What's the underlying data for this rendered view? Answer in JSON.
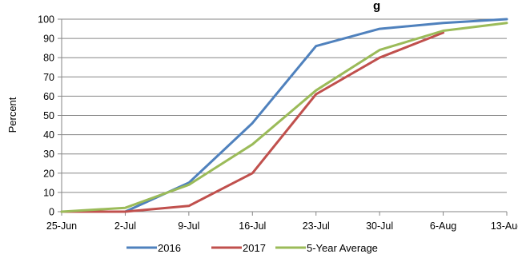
{
  "chart_data": {
    "type": "line",
    "title": "g",
    "xlabel": "",
    "ylabel": "Percent",
    "categories": [
      "25-Jun",
      "2-Jul",
      "9-Jul",
      "16-Jul",
      "23-Jul",
      "30-Jul",
      "6-Aug",
      "13-Aug"
    ],
    "ylim": [
      0,
      100
    ],
    "yticks": [
      0,
      10,
      20,
      30,
      40,
      50,
      60,
      70,
      80,
      90,
      100
    ],
    "grid": true,
    "legend_position": "bottom",
    "series": [
      {
        "name": "2016",
        "color": "#4F81BD",
        "values": [
          0,
          0,
          15,
          46,
          86,
          95,
          98,
          100
        ]
      },
      {
        "name": "2017",
        "color": "#C0504D",
        "values": [
          0,
          0,
          3,
          20,
          61,
          80,
          93,
          null
        ]
      },
      {
        "name": "5-Year Average",
        "color": "#9BBB59",
        "values": [
          0,
          2,
          14,
          35,
          63,
          84,
          94,
          98
        ]
      }
    ]
  }
}
